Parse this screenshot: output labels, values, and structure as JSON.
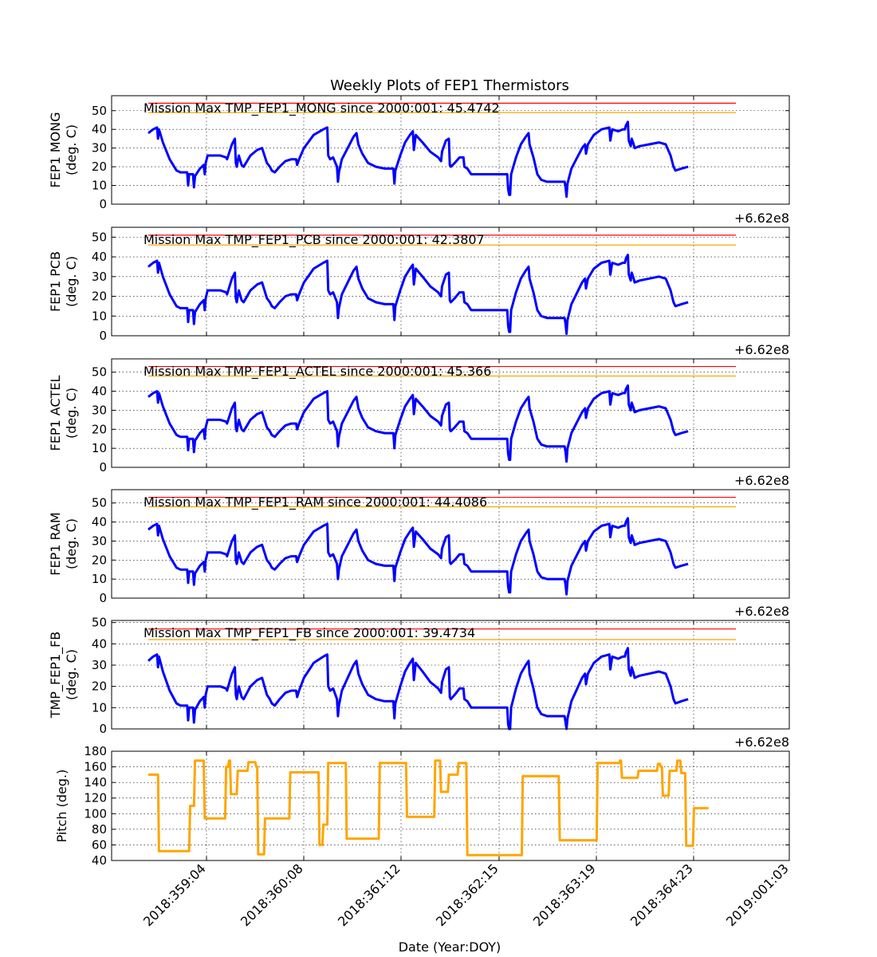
{
  "figure": {
    "title": "Weekly Plots of FEP1 Thermistors",
    "xlabel": "Date (Year:DOY)",
    "x_ticks": [
      "2018:359:04",
      "2018:360:08",
      "2018:361:12",
      "2018:362:15",
      "2018:363:19",
      "2018:364:23",
      "2019:001:03"
    ],
    "offset_label": "+6.62e8"
  },
  "colors": {
    "data": "#0000ff",
    "red_limit": "#ff0000",
    "yellow_limit": "#ffa500",
    "pitch": "#ffa500"
  },
  "chart_data": [
    {
      "type": "line",
      "ylabel": [
        "FEP1 MONG",
        "(deg. C)"
      ],
      "yticks": [
        0,
        10,
        20,
        30,
        40,
        50
      ],
      "ylim": [
        0,
        58
      ],
      "annotation": "Mission Max TMP_FEP1_MONG since 2000:001: 45.4742",
      "limits": {
        "red": 54,
        "yellow": 49
      },
      "series_key": "mong",
      "offset": 0
    },
    {
      "type": "line",
      "ylabel": [
        "FEP1 PCB",
        "(deg. C)"
      ],
      "yticks": [
        0,
        10,
        20,
        30,
        40,
        50
      ],
      "ylim": [
        0,
        55
      ],
      "annotation": "Mission Max TMP_FEP1_PCB since 2000:001: 42.3807",
      "limits": {
        "red": 51,
        "yellow": 46
      },
      "series_key": "pcb",
      "offset": -3
    },
    {
      "type": "line",
      "ylabel": [
        "FEP1 ACTEL",
        "(deg. C)"
      ],
      "yticks": [
        0,
        10,
        20,
        30,
        40,
        50
      ],
      "ylim": [
        0,
        57
      ],
      "annotation": "Mission Max TMP_FEP1_ACTEL since 2000:001: 45.366",
      "limits": {
        "red": 53,
        "yellow": 48
      },
      "series_key": "actel",
      "offset": -1
    },
    {
      "type": "line",
      "ylabel": [
        "FEP1 RAM",
        "(deg. C)"
      ],
      "yticks": [
        0,
        10,
        20,
        30,
        40,
        50
      ],
      "ylim": [
        0,
        57
      ],
      "annotation": "Mission Max TMP_FEP1_RAM since 2000:001: 44.4086",
      "limits": {
        "red": 53,
        "yellow": 48
      },
      "series_key": "ram",
      "offset": -2
    },
    {
      "type": "line",
      "ylabel": [
        "TMP_FEP1_FB",
        "(deg. C)"
      ],
      "yticks": [
        0,
        10,
        20,
        30,
        40,
        50
      ],
      "ylim": [
        0,
        51
      ],
      "annotation": "Mission Max TMP_FEP1_FB since 2000:001: 39.4734",
      "limits": {
        "red": 47,
        "yellow": 42
      },
      "series_key": "fb",
      "offset": -6
    },
    {
      "type": "line",
      "ylabel": [
        "Pitch (deg.)"
      ],
      "yticks": [
        40,
        60,
        80,
        100,
        120,
        140,
        160,
        180
      ],
      "ylim": [
        40,
        180
      ],
      "annotation": "",
      "series_key": "pitch",
      "points": [
        [
          0.0,
          150
        ],
        [
          0.1,
          150
        ],
        [
          0.11,
          52
        ],
        [
          0.42,
          52
        ],
        [
          0.43,
          110
        ],
        [
          0.47,
          110
        ],
        [
          0.48,
          168
        ],
        [
          0.57,
          168
        ],
        [
          0.58,
          94
        ],
        [
          0.79,
          94
        ],
        [
          0.8,
          160
        ],
        [
          0.82,
          160
        ],
        [
          0.83,
          168
        ],
        [
          0.84,
          168
        ],
        [
          0.85,
          125
        ],
        [
          0.91,
          125
        ],
        [
          0.92,
          155
        ],
        [
          1.02,
          155
        ],
        [
          1.03,
          166
        ],
        [
          1.1,
          166
        ],
        [
          1.11,
          160
        ],
        [
          1.12,
          160
        ],
        [
          1.13,
          48
        ],
        [
          1.19,
          48
        ],
        [
          1.2,
          94
        ],
        [
          1.45,
          94
        ],
        [
          1.46,
          153
        ],
        [
          1.75,
          153
        ],
        [
          1.76,
          60
        ],
        [
          1.79,
          60
        ],
        [
          1.8,
          86
        ],
        [
          1.84,
          86
        ],
        [
          1.85,
          165
        ],
        [
          2.03,
          165
        ],
        [
          2.04,
          68
        ],
        [
          2.37,
          68
        ],
        [
          2.38,
          165
        ],
        [
          2.65,
          165
        ],
        [
          2.66,
          96
        ],
        [
          2.94,
          96
        ],
        [
          2.95,
          168
        ],
        [
          3.0,
          168
        ],
        [
          3.01,
          128
        ],
        [
          3.08,
          128
        ],
        [
          3.09,
          150
        ],
        [
          3.18,
          150
        ],
        [
          3.19,
          165
        ],
        [
          3.27,
          165
        ],
        [
          3.28,
          47
        ],
        [
          3.84,
          47
        ],
        [
          3.85,
          148
        ],
        [
          4.22,
          148
        ],
        [
          4.23,
          66
        ],
        [
          4.61,
          66
        ],
        [
          4.62,
          165
        ],
        [
          4.84,
          165
        ],
        [
          4.85,
          168
        ],
        [
          4.86,
          168
        ],
        [
          4.87,
          146
        ],
        [
          5.03,
          146
        ],
        [
          5.04,
          155
        ],
        [
          5.23,
          155
        ],
        [
          5.24,
          164
        ],
        [
          5.26,
          164
        ],
        [
          5.27,
          160
        ],
        [
          5.28,
          160
        ],
        [
          5.29,
          123
        ],
        [
          5.35,
          123
        ],
        [
          5.36,
          155
        ],
        [
          5.43,
          155
        ],
        [
          5.44,
          168
        ],
        [
          5.47,
          168
        ],
        [
          5.48,
          152
        ],
        [
          5.52,
          152
        ],
        [
          5.53,
          59
        ],
        [
          5.6,
          59
        ],
        [
          5.61,
          107
        ],
        [
          5.76,
          107
        ]
      ]
    }
  ],
  "mong_points": [
    [
      0.0,
      38
    ],
    [
      0.05,
      40
    ],
    [
      0.09,
      41
    ],
    [
      0.1,
      35
    ],
    [
      0.11,
      40
    ],
    [
      0.15,
      33
    ],
    [
      0.22,
      24
    ],
    [
      0.29,
      18
    ],
    [
      0.33,
      17
    ],
    [
      0.4,
      17
    ],
    [
      0.41,
      10
    ],
    [
      0.42,
      16
    ],
    [
      0.46,
      16
    ],
    [
      0.47,
      9
    ],
    [
      0.48,
      15
    ],
    [
      0.53,
      19
    ],
    [
      0.57,
      21
    ],
    [
      0.58,
      16
    ],
    [
      0.59,
      22
    ],
    [
      0.61,
      26
    ],
    [
      0.67,
      26
    ],
    [
      0.74,
      26
    ],
    [
      0.8,
      25
    ],
    [
      0.81,
      24
    ],
    [
      0.86,
      32
    ],
    [
      0.89,
      35
    ],
    [
      0.9,
      22
    ],
    [
      0.91,
      20
    ],
    [
      0.93,
      26
    ],
    [
      0.96,
      21
    ],
    [
      0.98,
      20
    ],
    [
      1.05,
      26
    ],
    [
      1.12,
      29
    ],
    [
      1.17,
      30
    ],
    [
      1.22,
      22
    ],
    [
      1.25,
      20
    ],
    [
      1.27,
      18
    ],
    [
      1.3,
      17
    ],
    [
      1.35,
      20
    ],
    [
      1.41,
      23
    ],
    [
      1.47,
      24
    ],
    [
      1.52,
      24
    ],
    [
      1.53,
      21
    ],
    [
      1.55,
      24
    ],
    [
      1.6,
      30
    ],
    [
      1.7,
      37
    ],
    [
      1.8,
      40
    ],
    [
      1.84,
      41
    ],
    [
      1.85,
      26
    ],
    [
      1.87,
      24
    ],
    [
      1.9,
      25
    ],
    [
      1.94,
      20
    ],
    [
      1.95,
      12
    ],
    [
      1.96,
      17
    ],
    [
      1.99,
      24
    ],
    [
      2.05,
      30
    ],
    [
      2.11,
      36
    ],
    [
      2.14,
      38
    ],
    [
      2.16,
      32
    ],
    [
      2.2,
      27
    ],
    [
      2.26,
      22
    ],
    [
      2.34,
      20
    ],
    [
      2.43,
      19
    ],
    [
      2.52,
      19
    ],
    [
      2.53,
      11
    ],
    [
      2.54,
      18
    ],
    [
      2.59,
      26
    ],
    [
      2.64,
      33
    ],
    [
      2.69,
      37
    ],
    [
      2.72,
      39
    ],
    [
      2.73,
      29
    ],
    [
      2.75,
      37
    ],
    [
      2.82,
      33
    ],
    [
      2.9,
      28
    ],
    [
      2.98,
      25
    ],
    [
      3.01,
      23
    ],
    [
      3.02,
      28
    ],
    [
      3.06,
      34
    ],
    [
      3.09,
      35
    ],
    [
      3.1,
      21
    ],
    [
      3.11,
      20
    ],
    [
      3.15,
      22
    ],
    [
      3.2,
      25
    ],
    [
      3.24,
      25
    ],
    [
      3.25,
      20
    ],
    [
      3.28,
      19
    ],
    [
      3.32,
      16
    ],
    [
      3.5,
      16
    ],
    [
      3.69,
      16
    ],
    [
      3.7,
      8
    ],
    [
      3.71,
      5
    ],
    [
      3.72,
      5
    ],
    [
      3.73,
      16
    ],
    [
      3.78,
      25
    ],
    [
      3.83,
      32
    ],
    [
      3.88,
      36
    ],
    [
      3.91,
      38
    ],
    [
      3.92,
      32
    ],
    [
      3.96,
      25
    ],
    [
      4.0,
      16
    ],
    [
      4.04,
      13
    ],
    [
      4.1,
      12
    ],
    [
      4.18,
      12
    ],
    [
      4.28,
      12
    ],
    [
      4.29,
      9
    ],
    [
      4.3,
      4
    ],
    [
      4.31,
      11
    ],
    [
      4.35,
      19
    ],
    [
      4.4,
      24
    ],
    [
      4.46,
      30
    ],
    [
      4.49,
      32
    ],
    [
      4.5,
      27
    ],
    [
      4.52,
      32
    ],
    [
      4.58,
      37
    ],
    [
      4.66,
      40
    ],
    [
      4.74,
      41
    ],
    [
      4.75,
      34
    ],
    [
      4.77,
      40
    ],
    [
      4.83,
      39
    ],
    [
      4.88,
      40
    ],
    [
      4.9,
      40
    ],
    [
      4.91,
      42
    ],
    [
      4.93,
      44
    ],
    [
      4.94,
      34
    ],
    [
      4.96,
      31
    ],
    [
      4.97,
      35
    ],
    [
      4.99,
      32
    ],
    [
      5.0,
      30
    ],
    [
      5.05,
      31
    ],
    [
      5.15,
      32
    ],
    [
      5.25,
      33
    ],
    [
      5.32,
      32
    ],
    [
      5.37,
      26
    ],
    [
      5.4,
      20
    ],
    [
      5.42,
      18
    ],
    [
      5.48,
      19
    ],
    [
      5.55,
      20
    ]
  ]
}
